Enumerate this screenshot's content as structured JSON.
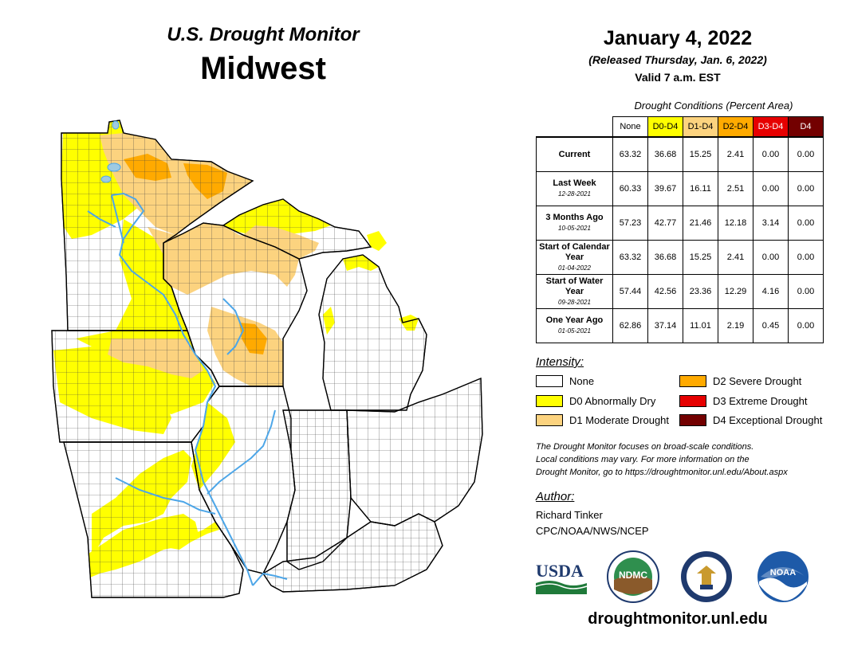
{
  "header": {
    "subtitle": "U.S. Drought Monitor",
    "region": "Midwest",
    "date": "January 4, 2022",
    "released": "(Released Thursday, Jan. 6, 2022)",
    "valid": "Valid 7 a.m. EST"
  },
  "table": {
    "title": "Drought Conditions (Percent Area)",
    "columns": [
      "None",
      "D0-D4",
      "D1-D4",
      "D2-D4",
      "D3-D4",
      "D4"
    ],
    "rows": [
      {
        "label": "Current",
        "date": "",
        "values": [
          "63.32",
          "36.68",
          "15.25",
          "2.41",
          "0.00",
          "0.00"
        ]
      },
      {
        "label": "Last Week",
        "date": "12-28-2021",
        "values": [
          "60.33",
          "39.67",
          "16.11",
          "2.51",
          "0.00",
          "0.00"
        ]
      },
      {
        "label": "3 Months Ago",
        "date": "10-05-2021",
        "values": [
          "57.23",
          "42.77",
          "21.46",
          "12.18",
          "3.14",
          "0.00"
        ]
      },
      {
        "label": "Start of Calendar Year",
        "date": "01-04-2022",
        "values": [
          "63.32",
          "36.68",
          "15.25",
          "2.41",
          "0.00",
          "0.00"
        ]
      },
      {
        "label": "Start of Water Year",
        "date": "09-28-2021",
        "values": [
          "57.44",
          "42.56",
          "23.36",
          "12.29",
          "4.16",
          "0.00"
        ]
      },
      {
        "label": "One Year Ago",
        "date": "01-05-2021",
        "values": [
          "62.86",
          "37.14",
          "11.01",
          "2.19",
          "0.45",
          "0.00"
        ]
      }
    ]
  },
  "legend": {
    "title": "Intensity:",
    "items": [
      {
        "label": "None",
        "color": "#ffffff"
      },
      {
        "label": "D0 Abnormally Dry",
        "color": "#ffff00"
      },
      {
        "label": "D1 Moderate Drought",
        "color": "#fcd37f"
      },
      {
        "label": "D2 Severe Drought",
        "color": "#ffaa00"
      },
      {
        "label": "D3 Extreme Drought",
        "color": "#e60000"
      },
      {
        "label": "D4 Exceptional Drought",
        "color": "#730000"
      }
    ]
  },
  "note": {
    "line1": "The Drought Monitor focuses on broad-scale conditions.",
    "line2": "Local conditions may vary. For more information on the",
    "line3": "Drought Monitor, go to https://droughtmonitor.unl.edu/About.aspx"
  },
  "author": {
    "label": "Author:",
    "name": "Richard Tinker",
    "org": "CPC/NOAA/NWS/NCEP"
  },
  "logos": {
    "usda": "USDA",
    "ndmc": "NDMC",
    "noaa": "NOAA"
  },
  "footer": {
    "url": "droughtmonitor.unl.edu"
  }
}
